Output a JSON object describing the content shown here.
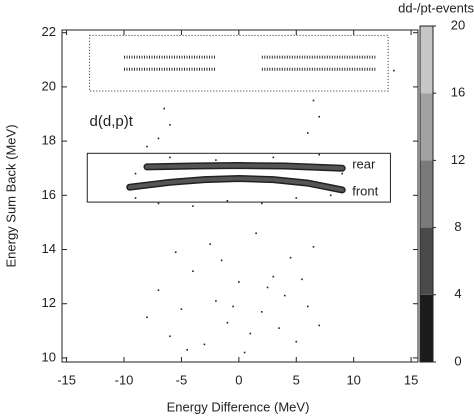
{
  "chart_data": {
    "type": "scatter",
    "xlabel": "Energy Difference (MeV)",
    "ylabel": "Energy Sum Back (MeV)",
    "xlim": [
      -15.4,
      15.6
    ],
    "ylim": [
      9.85,
      22.1
    ],
    "xticks": [
      -15,
      -10,
      -5,
      0,
      5,
      10,
      15
    ],
    "yticks": [
      10,
      12,
      14,
      16,
      18,
      20,
      22
    ],
    "points": {
      "color": "#222222",
      "x": [
        -7,
        -5,
        -4,
        -3,
        -2,
        -1,
        0,
        1,
        2,
        3,
        4,
        5,
        6,
        -6,
        -4.5,
        -1.5,
        0.5,
        2.5,
        3.5,
        5.5,
        -2.5,
        1.5,
        -0.5,
        4.5,
        -5.5,
        7,
        -8,
        6.5,
        -9,
        -7,
        -4,
        -1,
        2,
        5,
        8,
        -6,
        -2,
        3,
        7,
        9,
        -9,
        -7,
        -6,
        6,
        7,
        6.5,
        -6.5,
        13.5,
        -8
      ],
      "y": [
        12.5,
        11.8,
        13.2,
        10.5,
        12.1,
        11.3,
        12.8,
        10.9,
        11.7,
        13.0,
        12.3,
        10.6,
        11.9,
        10.8,
        10.3,
        13.6,
        10.2,
        12.6,
        11.1,
        12.9,
        14.2,
        14.6,
        11.9,
        13.7,
        13.9,
        11.2,
        11.5,
        14.1,
        15.9,
        15.7,
        15.6,
        15.8,
        15.7,
        15.9,
        16.0,
        17.4,
        17.3,
        17.4,
        17.5,
        16.8,
        16.8,
        18.1,
        18.6,
        18.3,
        18.9,
        19.5,
        19.2,
        20.6,
        17.8
      ]
    },
    "dashes": [
      {
        "x": [
          -10,
          -2
        ],
        "y": [
          21.1,
          21.1
        ]
      },
      {
        "x": [
          -10,
          -2
        ],
        "y": [
          20.65,
          20.65
        ]
      },
      {
        "x": [
          2,
          12
        ],
        "y": [
          21.1,
          21.1
        ]
      },
      {
        "x": [
          2,
          12
        ],
        "y": [
          20.65,
          20.65
        ]
      }
    ],
    "series": [
      {
        "name": "rear",
        "color": "#555555",
        "x": [
          -8,
          -4,
          0,
          4,
          9
        ],
        "y": [
          17.05,
          17.08,
          17.1,
          17.08,
          17.0
        ]
      },
      {
        "name": "front",
        "color": "#555555",
        "x": [
          -9.5,
          -6,
          -3,
          0,
          3,
          6,
          9
        ],
        "y": [
          16.3,
          16.48,
          16.58,
          16.62,
          16.58,
          16.45,
          16.2
        ]
      }
    ],
    "regions": [
      {
        "x": [
          -13,
          13
        ],
        "y": [
          19.85,
          21.9
        ],
        "style": "dotted"
      },
      {
        "x": [
          -13.2,
          13.2
        ],
        "y": [
          15.75,
          17.55
        ],
        "style": "solid"
      }
    ],
    "annotation": {
      "text": "d(d,p)t",
      "x": -13,
      "y": 18.7
    },
    "colorbar": {
      "title": "dd-/pt-events",
      "ticks": [
        0,
        4,
        8,
        12,
        16,
        20
      ],
      "colors": [
        "#1c1c1c",
        "#4a4a4a",
        "#7a7a7a",
        "#a2a2a2",
        "#c6c6c6"
      ]
    }
  }
}
